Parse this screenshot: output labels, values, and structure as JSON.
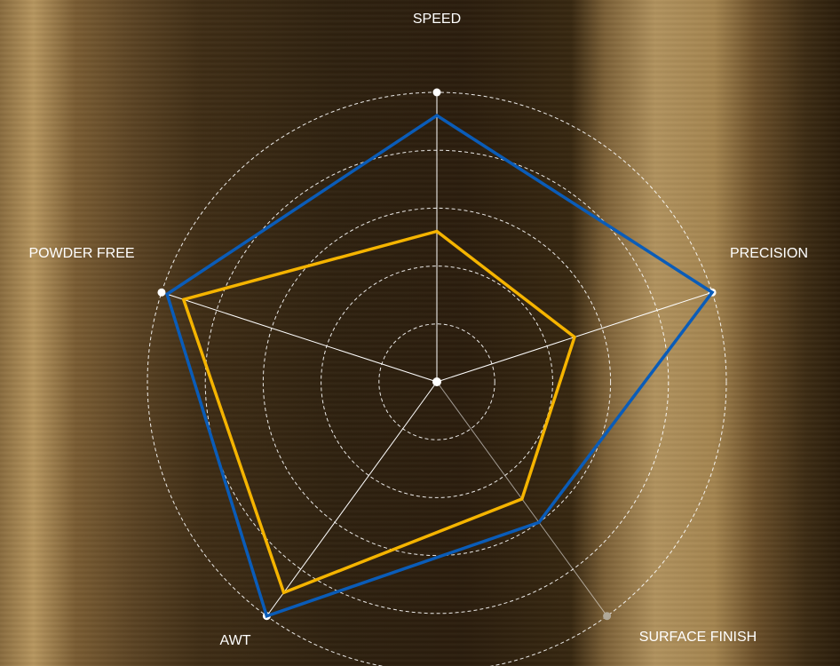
{
  "chart_data": {
    "type": "radar",
    "categories": [
      "SPEED",
      "PRECISION",
      "SURFACE FINISH",
      "AWT",
      "POWDER FREE"
    ],
    "series": [
      {
        "color": "#0a5cb8",
        "values": [
          92,
          100,
          60,
          100,
          98
        ]
      },
      {
        "color": "#f5b400",
        "values": [
          52,
          50,
          50,
          90,
          92
        ]
      }
    ],
    "rlim": [
      0,
      100
    ],
    "rticks": [
      20,
      40,
      60,
      80,
      100
    ],
    "grid": true
  }
}
